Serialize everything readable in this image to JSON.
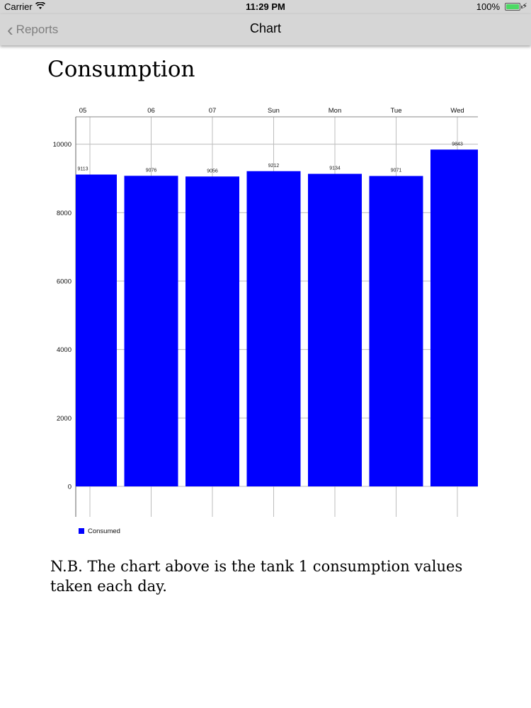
{
  "status_bar": {
    "carrier": "Carrier",
    "time": "11:29 PM",
    "battery": "100%"
  },
  "nav": {
    "back_label": "Reports",
    "title": "Chart"
  },
  "page": {
    "title": "Consumption",
    "note": "N.B. The chart above is the tank 1 consumption values taken each day."
  },
  "colors": {
    "bar": "#0000ff",
    "grid": "#bdbdbd",
    "nav_bg": "#d6d6d6"
  },
  "chart_data": {
    "type": "bar",
    "categories": [
      "05",
      "06",
      "07",
      "Sun",
      "Mon",
      "Tue",
      "Wed"
    ],
    "series": [
      {
        "name": "Consumed",
        "values": [
          9113,
          9076,
          9056,
          9212,
          9134,
          9071,
          9843
        ]
      }
    ],
    "value_labels": [
      "9113",
      "9076",
      "9056",
      "9212",
      "9134",
      "9071",
      "9843"
    ],
    "y_ticks": [
      0,
      2000,
      4000,
      6000,
      8000,
      10000
    ],
    "ylim": [
      0,
      10800
    ],
    "x_axis_position": "top",
    "grid": true,
    "legend_position": "bottom-left",
    "title": "",
    "xlabel": "",
    "ylabel": ""
  }
}
